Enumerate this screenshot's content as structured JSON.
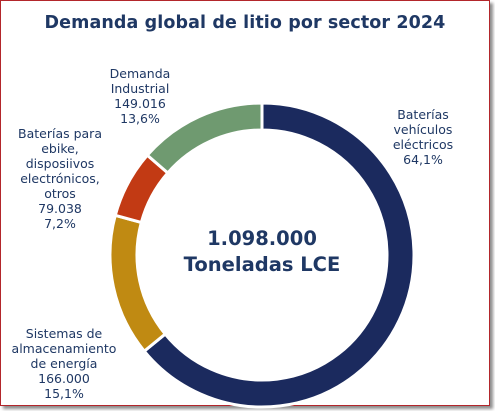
{
  "chart_data": {
    "type": "pie",
    "title": "Demanda global de litio por sector 2024",
    "donut": true,
    "center_label": [
      "1.098.000",
      "Toneladas LCE"
    ],
    "slices": [
      {
        "label_lines": [
          "Baterías",
          "vehículos",
          "eléctricos"
        ],
        "value_text": "",
        "percent_text": "64,1%",
        "percent": 64.1,
        "color": "#1b2a5e"
      },
      {
        "label_lines": [
          "Sistemas de",
          "almacenamiento",
          "de energía"
        ],
        "value_text": "166.000",
        "percent_text": "15,1%",
        "percent": 15.1,
        "color": "#c08a12"
      },
      {
        "label_lines": [
          "Baterías para",
          "ebike,",
          "disposiivos",
          "electrónicos,",
          "otros"
        ],
        "value_text": "79.038",
        "percent_text": "7,2%",
        "percent": 7.2,
        "color": "#c23a14"
      },
      {
        "label_lines": [
          "Demanda",
          "Industrial"
        ],
        "value_text": "149.016",
        "percent_text": "13,6%",
        "percent": 13.6,
        "color": "#6f9a70"
      }
    ]
  }
}
